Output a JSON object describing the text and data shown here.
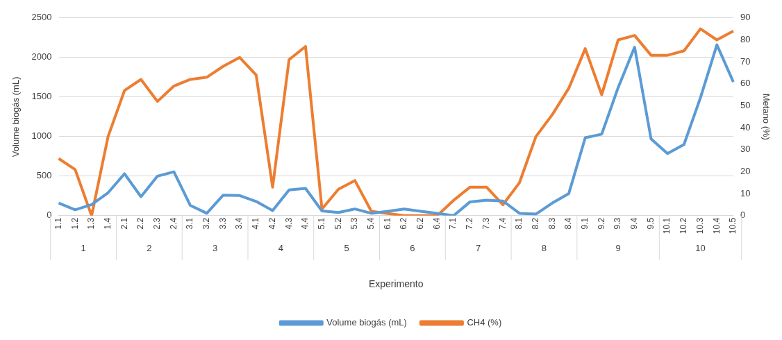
{
  "chart_data": {
    "type": "line",
    "xlabel": "Experimento",
    "ylabel": "Volume biogás (mL)",
    "y2label": "Metano (%)",
    "categories": [
      "1.1",
      "1.2",
      "1.3",
      "1.4",
      "2.1",
      "2.2",
      "2.3",
      "2.4",
      "3.1",
      "3.2",
      "3.3",
      "3.4",
      "4.1",
      "4.2",
      "4.3",
      "4.4",
      "5.1",
      "5.2",
      "5.3",
      "5.4",
      "6.1",
      "6.2",
      "6.2",
      "6.4",
      "7.1",
      "7.2",
      "7.3",
      "7.4",
      "8.1",
      "8.2",
      "8.3",
      "8.4",
      "9.1",
      "9.2",
      "9.3",
      "9.4",
      "9.5",
      "10.1",
      "10.2",
      "10.3",
      "10.4",
      "10.5"
    ],
    "annotations": [
      "1",
      "2",
      "3",
      "4",
      "5",
      "6",
      "7",
      "8",
      "9",
      "10"
    ],
    "series": [
      {
        "name": "Volume biogás (mL)",
        "color": "#5b9bd5",
        "values": [
          160,
          75,
          140,
          290,
          530,
          240,
          500,
          555,
          130,
          30,
          260,
          255,
          180,
          65,
          325,
          345,
          60,
          40,
          85,
          30,
          55,
          85,
          55,
          30,
          0,
          175,
          195,
          185,
          30,
          20,
          160,
          280,
          985,
          1030,
          1620,
          2130,
          970,
          785,
          900,
          1490,
          2160,
          1690
        ]
      },
      {
        "name": "CH4 (%)",
        "color": "#ed7d31",
        "axis": "y2",
        "values": [
          26,
          21,
          0,
          36,
          57,
          62,
          52,
          59,
          62,
          63,
          68,
          72,
          64,
          13,
          71,
          77,
          3,
          12,
          16,
          2,
          1,
          0,
          0,
          0,
          7,
          13,
          13,
          5,
          15,
          36,
          46,
          58,
          76,
          55,
          80,
          82,
          73,
          73,
          75,
          85,
          80,
          84
        ]
      }
    ],
    "ylim": [
      0,
      2500
    ],
    "yticks": [
      0,
      500,
      1000,
      1500,
      2000,
      2500
    ],
    "y2lim": [
      0,
      90
    ],
    "y2ticks": [
      0,
      10,
      20,
      30,
      40,
      50,
      60,
      70,
      80,
      90
    ],
    "grid": "y",
    "legend": "bottom",
    "marker": "none",
    "line_style": "solid"
  }
}
